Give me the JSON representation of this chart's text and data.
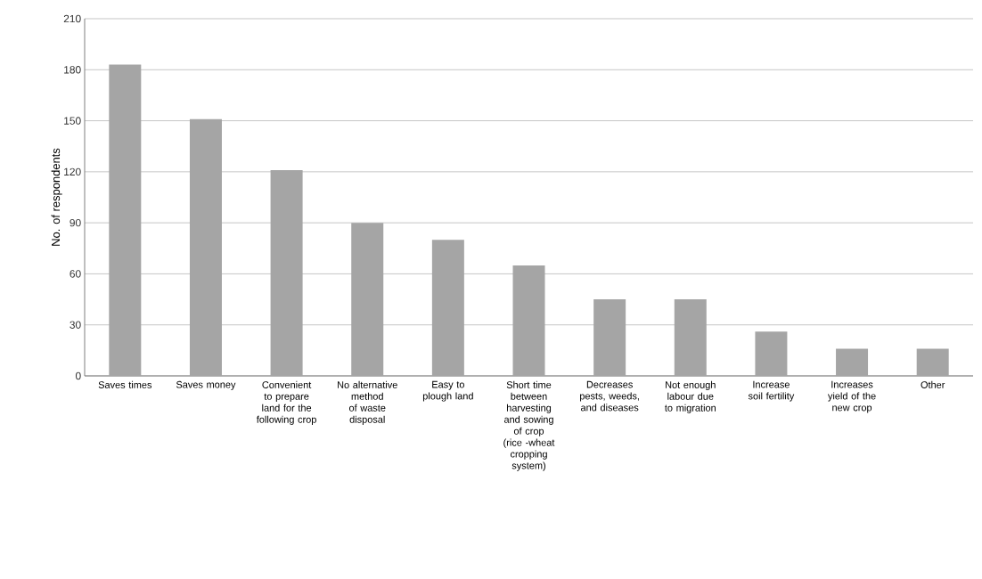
{
  "chart_data": {
    "type": "bar",
    "ylabel": "No. of respondents",
    "categories": [
      "Saves times",
      "Saves money",
      "Convenient to prepare land for the following crop",
      "No alternative method of waste disposal",
      "Easy to plough land",
      "Short time between harvesting and sowing of crop (rice -wheat cropping system)",
      "Decreases pests, weeds, and diseases",
      "Not enough labour due to migration",
      "Increase soil fertility",
      "Increases yield of the new crop",
      "Other"
    ],
    "values": [
      183,
      151,
      121,
      90,
      80,
      65,
      45,
      45,
      26,
      16,
      16
    ],
    "color": "#a5a5a5",
    "ylim": [
      0,
      210
    ],
    "yticks": [
      0,
      30,
      60,
      90,
      120,
      150,
      180,
      210
    ],
    "grid": "y"
  }
}
